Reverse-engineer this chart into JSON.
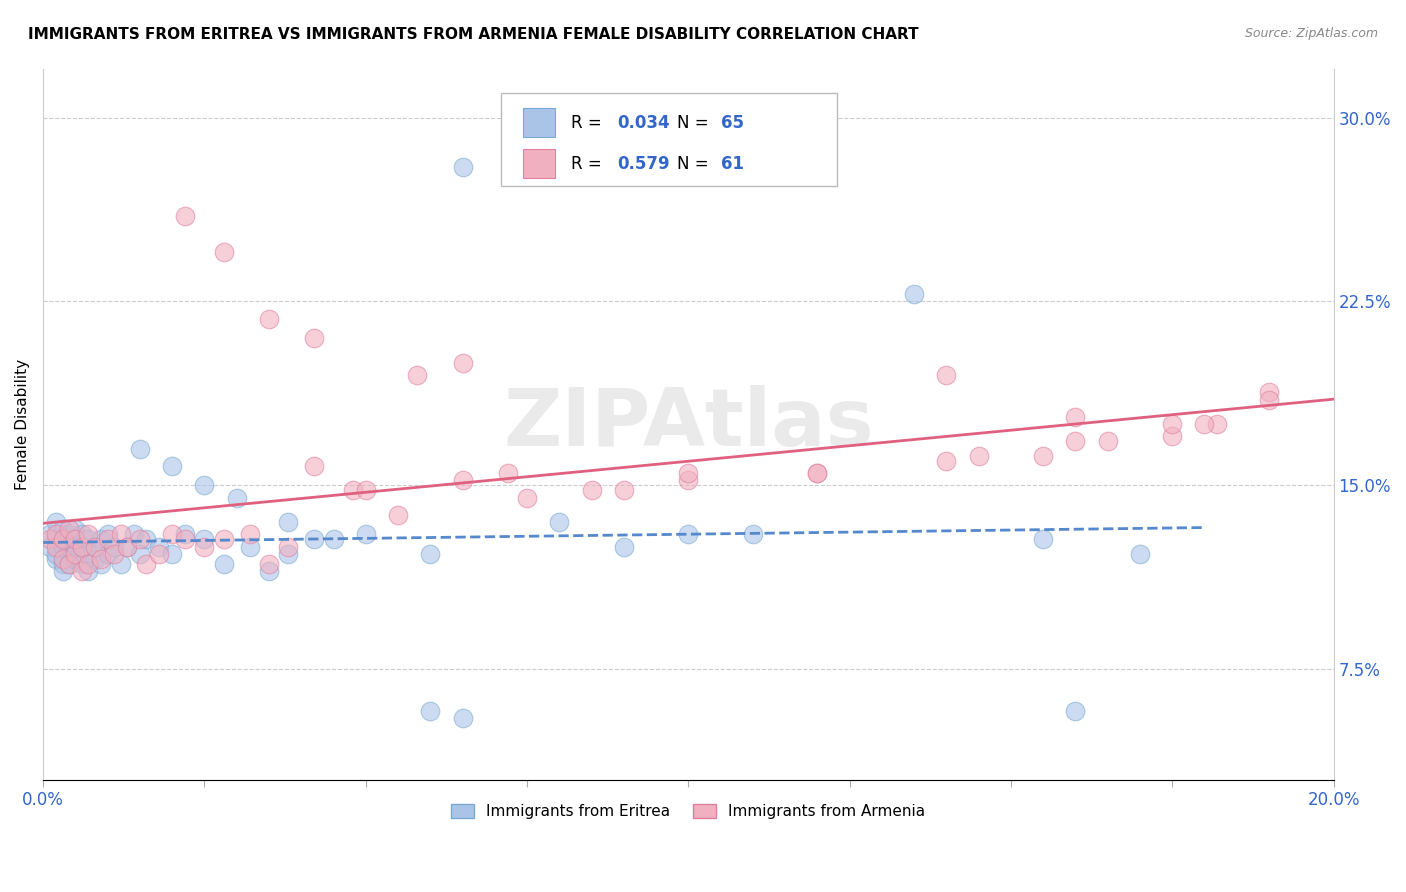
{
  "title": "IMMIGRANTS FROM ERITREA VS IMMIGRANTS FROM ARMENIA FEMALE DISABILITY CORRELATION CHART",
  "source": "Source: ZipAtlas.com",
  "ylabel": "Female Disability",
  "xlim": [
    0.0,
    0.2
  ],
  "ylim": [
    0.03,
    0.32
  ],
  "right_yticks": [
    0.075,
    0.15,
    0.225,
    0.3
  ],
  "right_yticklabels": [
    "7.5%",
    "15.0%",
    "22.5%",
    "30.0%"
  ],
  "xtick_vals": [
    0.0,
    0.025,
    0.05,
    0.075,
    0.1,
    0.125,
    0.15,
    0.175,
    0.2
  ],
  "xticklabels": [
    "0.0%",
    "",
    "",
    "",
    "",
    "",
    "",
    "",
    "20.0%"
  ],
  "legend_label1": "Immigrants from Eritrea",
  "legend_label2": "Immigrants from Armenia",
  "color_eritrea": "#aac4e8",
  "color_eritrea_edge": "#7aaad0",
  "color_eritrea_line": "#5588cc",
  "color_armenia": "#f0b0c0",
  "color_armenia_edge": "#e080a0",
  "color_armenia_line": "#e06080",
  "color_text_blue": "#3366cc",
  "R1": "0.034",
  "N1": "65",
  "R2": "0.579",
  "N2": "61",
  "eritrea_x": [
    0.001,
    0.001,
    0.002,
    0.002,
    0.002,
    0.002,
    0.003,
    0.003,
    0.003,
    0.003,
    0.003,
    0.004,
    0.004,
    0.004,
    0.004,
    0.005,
    0.005,
    0.005,
    0.005,
    0.006,
    0.006,
    0.006,
    0.007,
    0.007,
    0.007,
    0.008,
    0.008,
    0.009,
    0.009,
    0.01,
    0.01,
    0.011,
    0.012,
    0.013,
    0.014,
    0.015,
    0.016,
    0.018,
    0.02,
    0.022,
    0.025,
    0.028,
    0.032,
    0.035,
    0.038,
    0.042,
    0.015,
    0.02,
    0.025,
    0.03,
    0.038,
    0.045,
    0.05,
    0.06,
    0.065,
    0.08,
    0.09,
    0.11,
    0.135,
    0.155,
    0.16,
    0.17,
    0.06,
    0.065,
    0.1
  ],
  "eritrea_y": [
    0.125,
    0.13,
    0.12,
    0.135,
    0.128,
    0.122,
    0.118,
    0.132,
    0.125,
    0.128,
    0.115,
    0.122,
    0.13,
    0.125,
    0.118,
    0.12,
    0.132,
    0.125,
    0.128,
    0.118,
    0.125,
    0.13,
    0.122,
    0.128,
    0.115,
    0.12,
    0.125,
    0.118,
    0.128,
    0.122,
    0.13,
    0.125,
    0.118,
    0.125,
    0.13,
    0.122,
    0.128,
    0.125,
    0.122,
    0.13,
    0.128,
    0.118,
    0.125,
    0.115,
    0.122,
    0.128,
    0.165,
    0.158,
    0.15,
    0.145,
    0.135,
    0.128,
    0.13,
    0.122,
    0.28,
    0.135,
    0.125,
    0.13,
    0.228,
    0.128,
    0.058,
    0.122,
    0.058,
    0.055,
    0.13
  ],
  "armenia_x": [
    0.001,
    0.002,
    0.002,
    0.003,
    0.003,
    0.004,
    0.004,
    0.005,
    0.005,
    0.006,
    0.006,
    0.007,
    0.007,
    0.008,
    0.009,
    0.01,
    0.011,
    0.012,
    0.013,
    0.015,
    0.016,
    0.018,
    0.02,
    0.022,
    0.025,
    0.028,
    0.032,
    0.035,
    0.038,
    0.042,
    0.048,
    0.055,
    0.065,
    0.075,
    0.09,
    0.1,
    0.12,
    0.14,
    0.155,
    0.165,
    0.175,
    0.182,
    0.19,
    0.022,
    0.028,
    0.035,
    0.042,
    0.05,
    0.065,
    0.085,
    0.1,
    0.12,
    0.145,
    0.16,
    0.175,
    0.19,
    0.058,
    0.072,
    0.14,
    0.16,
    0.18
  ],
  "armenia_y": [
    0.128,
    0.125,
    0.13,
    0.12,
    0.128,
    0.118,
    0.132,
    0.122,
    0.128,
    0.115,
    0.125,
    0.13,
    0.118,
    0.125,
    0.12,
    0.128,
    0.122,
    0.13,
    0.125,
    0.128,
    0.118,
    0.122,
    0.13,
    0.128,
    0.125,
    0.128,
    0.13,
    0.118,
    0.125,
    0.158,
    0.148,
    0.138,
    0.152,
    0.145,
    0.148,
    0.152,
    0.155,
    0.16,
    0.162,
    0.168,
    0.17,
    0.175,
    0.188,
    0.26,
    0.245,
    0.218,
    0.21,
    0.148,
    0.2,
    0.148,
    0.155,
    0.155,
    0.162,
    0.168,
    0.175,
    0.185,
    0.195,
    0.155,
    0.195,
    0.178,
    0.175
  ]
}
